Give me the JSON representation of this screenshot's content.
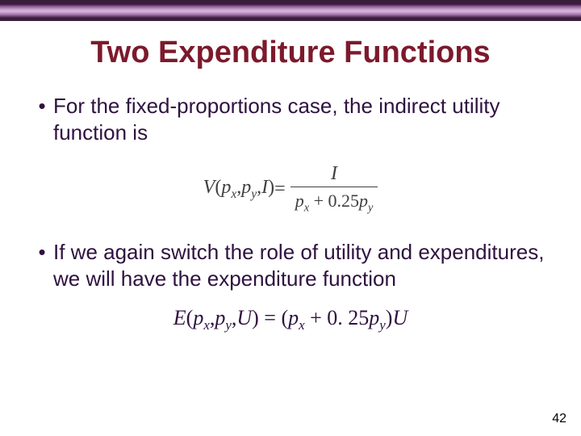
{
  "header": {
    "band_colors": [
      "#3a1c3d",
      "#8a5a92",
      "#c8a6cf",
      "#d4b5da",
      "#9e6fa8"
    ]
  },
  "title": {
    "text": "Two Expenditure Functions",
    "color": "#7c1a2c",
    "fontsize": 38
  },
  "bullets": [
    {
      "text": "For the fixed-proportions case, the indirect utility function is",
      "color": "#2f1240",
      "fontsize": 26
    },
    {
      "text": "If we again switch the role of utility and expenditures, we will have the expenditure function",
      "color": "#2f1240",
      "fontsize": 26
    }
  ],
  "formula_indirect": {
    "lhs_V": "V",
    "lhs_open": "(",
    "lhs_px": "p",
    "lhs_px_sub": "x",
    "lhs_comma1": ",",
    "lhs_py": "p",
    "lhs_py_sub": "y",
    "lhs_comma2": ",",
    "lhs_I": "I",
    "lhs_close": ")",
    "eq": " = ",
    "numerator": "I",
    "den_px": "p",
    "den_px_sub": "x",
    "den_plus": " + ",
    "den_coef": "0.25",
    "den_py": "p",
    "den_py_sub": "y",
    "color": "#404040",
    "fontsize": 24
  },
  "formula_expenditure": {
    "E": "E",
    "open": "(",
    "px": "p",
    "px_sub": "x",
    "c1": ",",
    "py": "p",
    "py_sub": "y",
    "c2": ",",
    "U": "U",
    "close": ")",
    "eq": " = (",
    "rpx": "p",
    "rpx_sub": "x",
    "plus": " + ",
    "coef": "0. 25",
    "rpy": "p",
    "rpy_sub": "y",
    "close2": ")",
    "U2": "U",
    "color": "#2f1240",
    "fontsize": 26
  },
  "page_number": "42",
  "colors": {
    "title": "#7c1a2c",
    "body": "#2f1240",
    "formula": "#404040",
    "pagenum": "#333333"
  }
}
